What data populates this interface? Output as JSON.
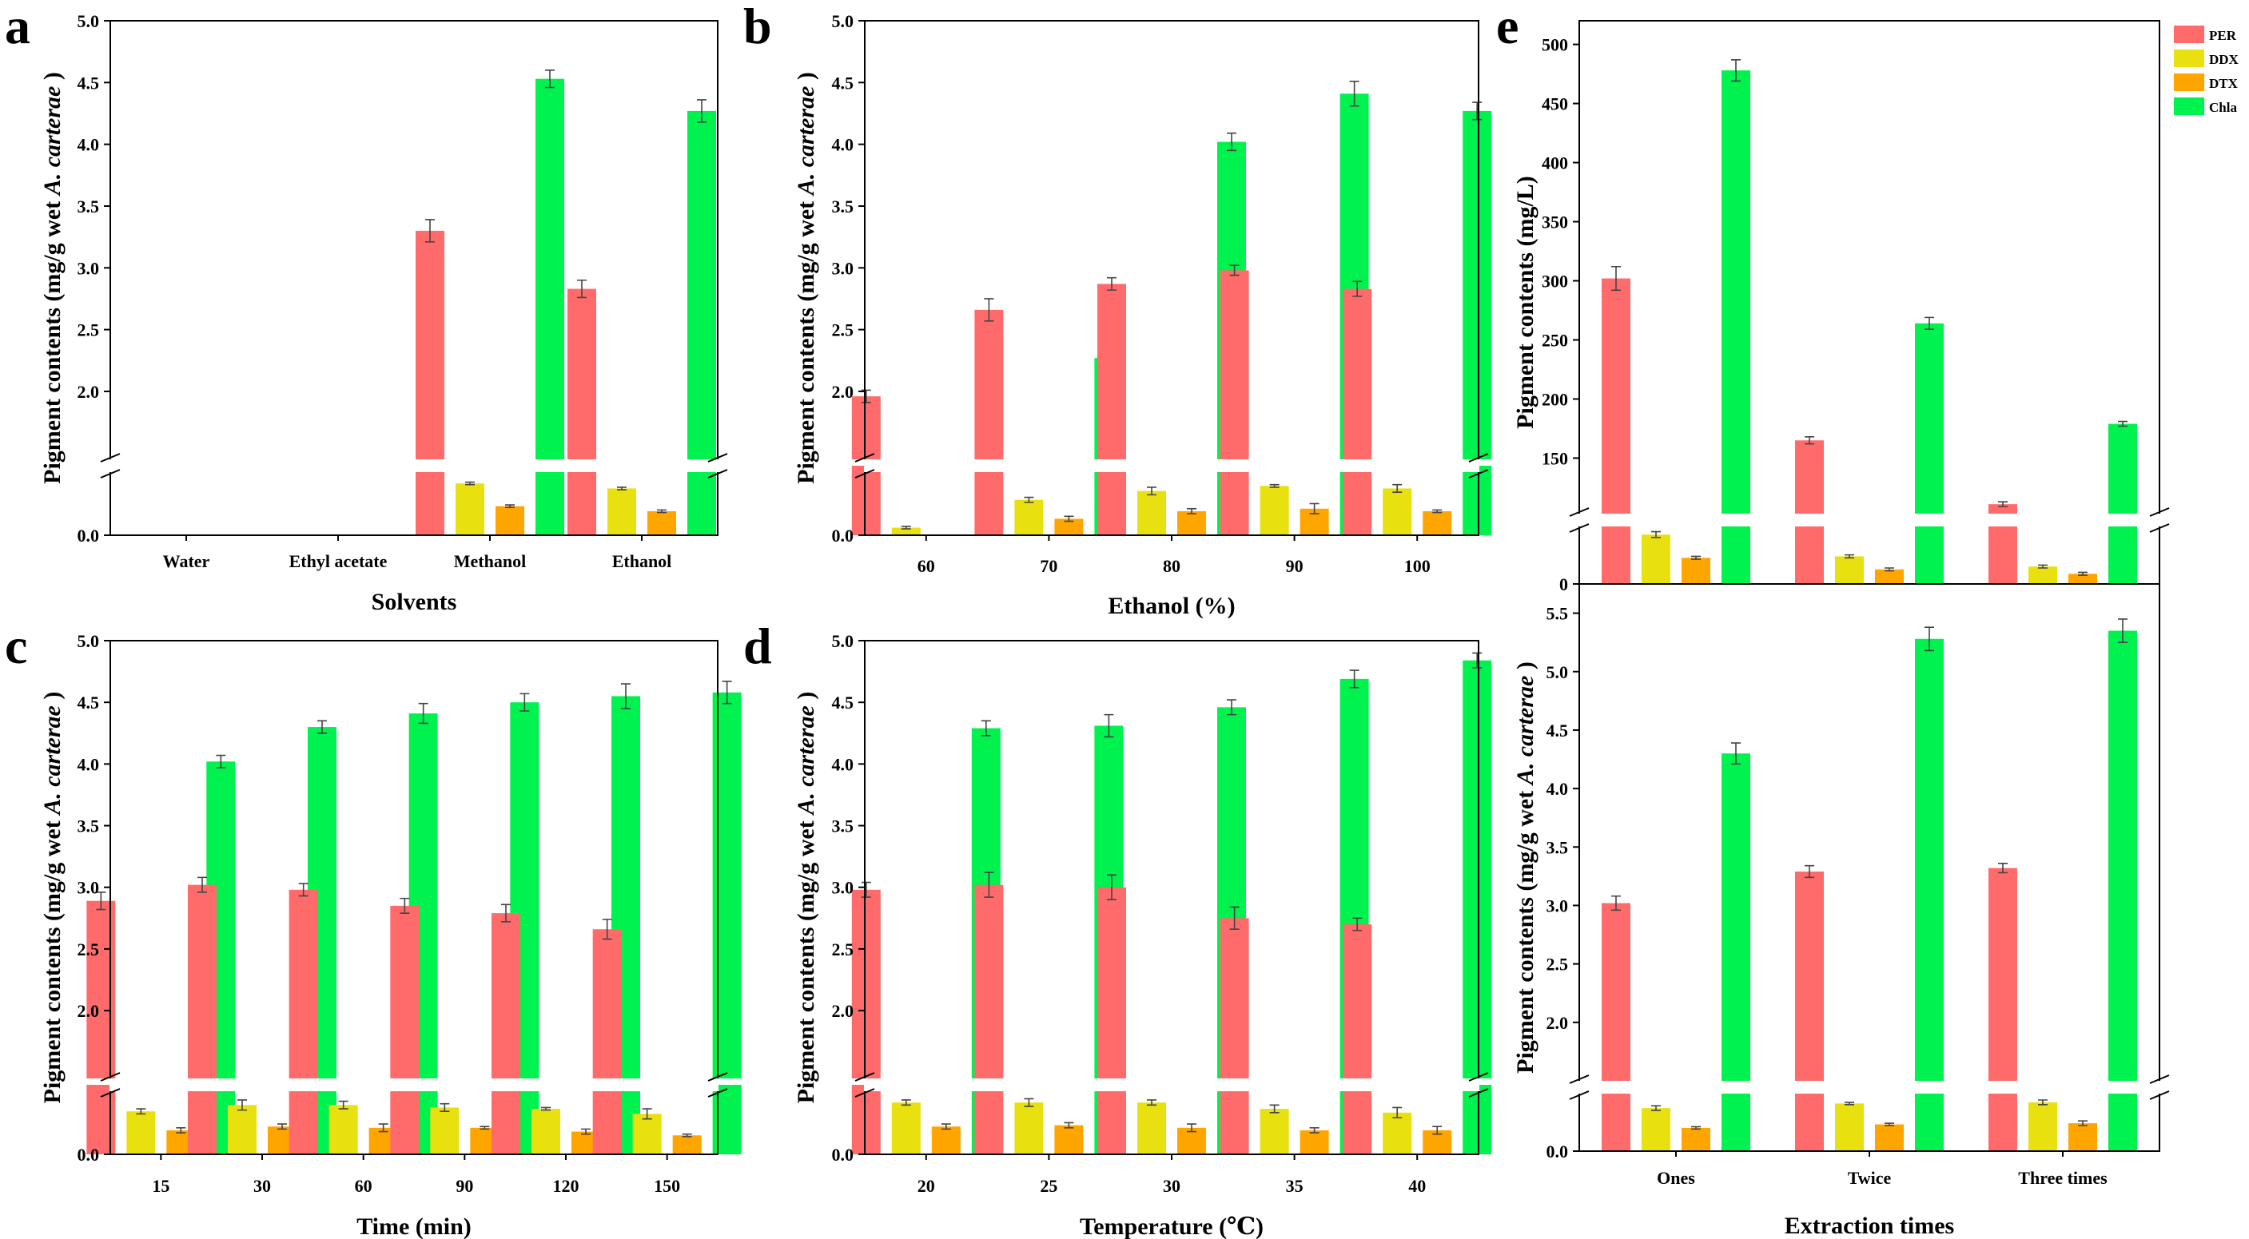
{
  "chart_data": [
    {
      "id": "a",
      "type": "bar",
      "panel_label": "a",
      "xlabel": "Solvents",
      "ylabel_parts": [
        "Pigment contents (mg/g wet ",
        "A. carterae",
        " )"
      ],
      "categories": [
        "Water",
        "Ethyl acetate",
        "Methanol",
        "Ethanol"
      ],
      "ylim_lower": [
        0,
        0.55
      ],
      "ylim_upper": [
        1.45,
        5.0
      ],
      "yticks_lower": [
        {
          "v": 0.0,
          "label": "0.0"
        }
      ],
      "yticks_upper": [
        {
          "v": 2.0,
          "label": "2.0"
        },
        {
          "v": 2.5,
          "label": "2.5"
        },
        {
          "v": 3.0,
          "label": "3.0"
        },
        {
          "v": 3.5,
          "label": "3.5"
        },
        {
          "v": 4.0,
          "label": "4.0"
        },
        {
          "v": 4.5,
          "label": "4.5"
        },
        {
          "v": 5.0,
          "label": "5.0"
        }
      ],
      "series": [
        {
          "name": "PER",
          "values": [
            0,
            0,
            3.3,
            2.83
          ],
          "errors": [
            0,
            0,
            0.09,
            0.07
          ]
        },
        {
          "name": "DDX",
          "values": [
            0,
            0,
            0.41,
            0.37
          ],
          "errors": [
            0,
            0,
            0.01,
            0.01
          ]
        },
        {
          "name": "DTX",
          "values": [
            0,
            0,
            0.23,
            0.19
          ],
          "errors": [
            0,
            0,
            0.01,
            0.01
          ]
        },
        {
          "name": "Chla",
          "values": [
            0,
            0,
            4.53,
            4.27
          ],
          "errors": [
            0,
            0,
            0.07,
            0.09
          ]
        }
      ]
    },
    {
      "id": "b",
      "type": "bar",
      "panel_label": "b",
      "xlabel": "Ethanol (%)",
      "ylabel_parts": [
        "Pigment contents (mg/g wet ",
        "A. carterae",
        " )"
      ],
      "categories": [
        "60",
        "70",
        "80",
        "90",
        "100"
      ],
      "ylim_lower": [
        0,
        0.55
      ],
      "ylim_upper": [
        1.45,
        5.0
      ],
      "yticks_lower": [
        {
          "v": 0.0,
          "label": "0.0"
        }
      ],
      "yticks_upper": [
        {
          "v": 2.0,
          "label": "2.0"
        },
        {
          "v": 2.5,
          "label": "2.5"
        },
        {
          "v": 3.0,
          "label": "3.0"
        },
        {
          "v": 3.5,
          "label": "3.5"
        },
        {
          "v": 4.0,
          "label": "4.0"
        },
        {
          "v": 4.5,
          "label": "4.5"
        },
        {
          "v": 5.0,
          "label": "5.0"
        }
      ],
      "series": [
        {
          "name": "PER",
          "values": [
            1.96,
            2.66,
            2.87,
            2.98,
            2.83
          ],
          "errors": [
            0.05,
            0.09,
            0.05,
            0.04,
            0.06
          ]
        },
        {
          "name": "DDX",
          "values": [
            0.06,
            0.28,
            0.35,
            0.39,
            0.37
          ],
          "errors": [
            0.01,
            0.02,
            0.03,
            0.01,
            0.03
          ]
        },
        {
          "name": "DTX",
          "values": [
            0,
            0.13,
            0.19,
            0.21,
            0.19
          ],
          "errors": [
            0,
            0.02,
            0.02,
            0.04,
            0.01
          ]
        },
        {
          "name": "Chla",
          "values": [
            0,
            2.27,
            4.02,
            4.41,
            4.27
          ],
          "errors": [
            0,
            0.05,
            0.07,
            0.1,
            0.07
          ]
        }
      ]
    },
    {
      "id": "c",
      "type": "bar",
      "panel_label": "c",
      "xlabel": "Time (min)",
      "ylabel_parts": [
        "Pigment contents (mg/g wet ",
        "A. carterae",
        " )"
      ],
      "categories": [
        "15",
        "30",
        "60",
        "90",
        "120",
        "150"
      ],
      "ylim_lower": [
        0,
        0.55
      ],
      "ylim_upper": [
        1.45,
        5.0
      ],
      "yticks_lower": [
        {
          "v": 0.0,
          "label": "0.0"
        }
      ],
      "yticks_upper": [
        {
          "v": 2.0,
          "label": "2.0"
        },
        {
          "v": 2.5,
          "label": "2.5"
        },
        {
          "v": 3.0,
          "label": "3.0"
        },
        {
          "v": 3.5,
          "label": "3.5"
        },
        {
          "v": 4.0,
          "label": "4.0"
        },
        {
          "v": 4.5,
          "label": "4.5"
        },
        {
          "v": 5.0,
          "label": "5.0"
        }
      ],
      "series": [
        {
          "name": "PER",
          "values": [
            2.89,
            3.02,
            2.98,
            2.85,
            2.79,
            2.66
          ],
          "errors": [
            0.07,
            0.06,
            0.05,
            0.06,
            0.07,
            0.08
          ]
        },
        {
          "name": "DDX",
          "values": [
            0.34,
            0.39,
            0.39,
            0.37,
            0.36,
            0.32
          ],
          "errors": [
            0.02,
            0.04,
            0.03,
            0.03,
            0.01,
            0.04
          ]
        },
        {
          "name": "DTX",
          "values": [
            0.19,
            0.22,
            0.21,
            0.21,
            0.18,
            0.15
          ],
          "errors": [
            0.02,
            0.02,
            0.03,
            0.01,
            0.02,
            0.01
          ]
        },
        {
          "name": "Chla",
          "values": [
            4.02,
            4.3,
            4.41,
            4.5,
            4.55,
            4.58
          ],
          "errors": [
            0.05,
            0.05,
            0.08,
            0.07,
            0.1,
            0.09
          ]
        }
      ]
    },
    {
      "id": "d",
      "type": "bar",
      "panel_label": "d",
      "xlabel": "Temperature (℃)",
      "ylabel_parts": [
        "Pigment contents (mg/g wet ",
        "A. carterae",
        " )"
      ],
      "categories": [
        "20",
        "25",
        "30",
        "35",
        "40"
      ],
      "ylim_lower": [
        0,
        0.55
      ],
      "ylim_upper": [
        1.45,
        5.0
      ],
      "yticks_lower": [
        {
          "v": 0.0,
          "label": "0.0"
        }
      ],
      "yticks_upper": [
        {
          "v": 2.0,
          "label": "2.0"
        },
        {
          "v": 2.5,
          "label": "2.5"
        },
        {
          "v": 3.0,
          "label": "3.0"
        },
        {
          "v": 3.5,
          "label": "3.5"
        },
        {
          "v": 4.0,
          "label": "4.0"
        },
        {
          "v": 4.5,
          "label": "4.5"
        },
        {
          "v": 5.0,
          "label": "5.0"
        }
      ],
      "series": [
        {
          "name": "PER",
          "values": [
            2.98,
            3.02,
            3.0,
            2.75,
            2.7
          ],
          "errors": [
            0.06,
            0.1,
            0.1,
            0.09,
            0.05
          ]
        },
        {
          "name": "DDX",
          "values": [
            0.41,
            0.41,
            0.41,
            0.36,
            0.33
          ],
          "errors": [
            0.02,
            0.03,
            0.02,
            0.03,
            0.04
          ]
        },
        {
          "name": "DTX",
          "values": [
            0.22,
            0.23,
            0.21,
            0.19,
            0.19
          ],
          "errors": [
            0.02,
            0.02,
            0.03,
            0.02,
            0.03
          ]
        },
        {
          "name": "Chla",
          "values": [
            4.29,
            4.31,
            4.46,
            4.69,
            4.84
          ],
          "errors": [
            0.06,
            0.09,
            0.06,
            0.07,
            0.06
          ]
        }
      ]
    },
    {
      "id": "e-top",
      "type": "bar",
      "panel_label": "e",
      "xlabel": "",
      "ylabel_parts": [
        "Pigment contents (mg/L)"
      ],
      "categories": [
        "Ones",
        "Twice",
        "Three times"
      ],
      "ylim_lower": [
        0,
        44
      ],
      "ylim_upper": [
        103,
        520
      ],
      "yticks_lower": [
        {
          "v": 0,
          "label": "0"
        }
      ],
      "yticks_upper": [
        {
          "v": 150,
          "label": "150"
        },
        {
          "v": 200,
          "label": "200"
        },
        {
          "v": 250,
          "label": "250"
        },
        {
          "v": 300,
          "label": "300"
        },
        {
          "v": 350,
          "label": "350"
        },
        {
          "v": 400,
          "label": "400"
        },
        {
          "v": 450,
          "label": "450"
        },
        {
          "v": 500,
          "label": "500"
        }
      ],
      "series": [
        {
          "name": "PER",
          "values": [
            302,
            165,
            111
          ],
          "errors": [
            10,
            3,
            2
          ]
        },
        {
          "name": "DDX",
          "values": [
            34,
            19,
            12
          ],
          "errors": [
            2,
            1,
            1
          ]
        },
        {
          "name": "DTX",
          "values": [
            18,
            10,
            7
          ],
          "errors": [
            1,
            1,
            1
          ]
        },
        {
          "name": "Chla",
          "values": [
            478,
            264,
            179
          ],
          "errors": [
            9,
            5,
            2
          ]
        }
      ]
    },
    {
      "id": "e-bottom",
      "type": "bar",
      "panel_label": "",
      "xlabel": "Extraction times",
      "ylabel_parts": [
        "Pigment contents (mg/g wet ",
        "A. carterae",
        " )"
      ],
      "categories": [
        "Ones",
        "Twice",
        "Three times"
      ],
      "ylim_lower": [
        0,
        0.55
      ],
      "ylim_upper": [
        1.5,
        5.75
      ],
      "yticks_lower": [
        {
          "v": 0.0,
          "label": "0.0"
        }
      ],
      "yticks_upper": [
        {
          "v": 2.0,
          "label": "2.0"
        },
        {
          "v": 2.5,
          "label": "2.5"
        },
        {
          "v": 3.0,
          "label": "3.0"
        },
        {
          "v": 3.5,
          "label": "3.5"
        },
        {
          "v": 4.0,
          "label": "4.0"
        },
        {
          "v": 4.5,
          "label": "4.5"
        },
        {
          "v": 5.0,
          "label": "5.0"
        },
        {
          "v": 5.5,
          "label": "5.5"
        }
      ],
      "series": [
        {
          "name": "PER",
          "values": [
            3.02,
            3.29,
            3.32
          ],
          "errors": [
            0.06,
            0.05,
            0.04
          ]
        },
        {
          "name": "DDX",
          "values": [
            0.37,
            0.41,
            0.42
          ],
          "errors": [
            0.02,
            0.01,
            0.02
          ]
        },
        {
          "name": "DTX",
          "values": [
            0.2,
            0.23,
            0.24
          ],
          "errors": [
            0.01,
            0.01,
            0.02
          ]
        },
        {
          "name": "Chla",
          "values": [
            4.3,
            5.28,
            5.35
          ],
          "errors": [
            0.09,
            0.1,
            0.1
          ]
        }
      ]
    }
  ],
  "legend": {
    "entries": [
      "PER",
      "DDX",
      "DTX",
      "Chla"
    ]
  },
  "colors": {
    "PER": "#ff6b6b",
    "DDX": "#e8e00f",
    "DTX": "#ffa500",
    "Chla": "#00f24e"
  }
}
